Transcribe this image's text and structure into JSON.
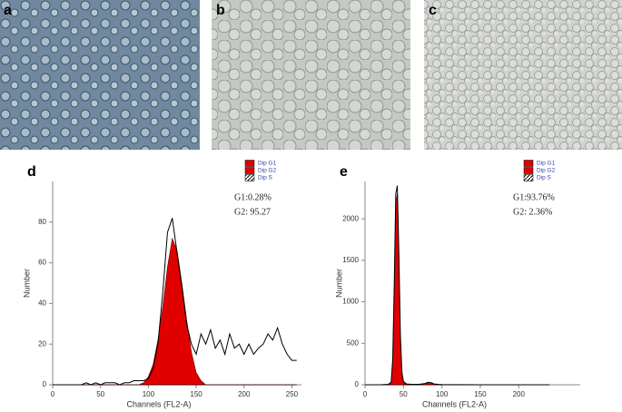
{
  "image_panels": [
    {
      "label": "a"
    },
    {
      "label": "b"
    },
    {
      "label": "c"
    }
  ],
  "chart_data": [
    {
      "type": "line",
      "panel": "d",
      "xlabel": "Channels (FL2-A)",
      "ylabel": "Number",
      "annotations": [
        "G1:0.28%",
        "G2: 95.27"
      ],
      "xlim": [
        0,
        260
      ],
      "xticks": [
        0,
        50,
        100,
        150,
        200,
        250
      ],
      "ylim": [
        0,
        100
      ],
      "yticks": [
        0,
        20,
        40,
        60,
        80
      ],
      "x": [
        0,
        5,
        10,
        15,
        20,
        25,
        30,
        35,
        40,
        45,
        50,
        55,
        60,
        65,
        70,
        75,
        80,
        85,
        90,
        95,
        100,
        105,
        110,
        115,
        120,
        125,
        130,
        135,
        140,
        145,
        150,
        155,
        160,
        165,
        170,
        175,
        180,
        185,
        190,
        195,
        200,
        205,
        210,
        215,
        220,
        225,
        230,
        235,
        240,
        245,
        250,
        255
      ],
      "series": [
        {
          "color": "#000000",
          "values": [
            0,
            0,
            0,
            0,
            0,
            0,
            0,
            1,
            0,
            1,
            0,
            1,
            1,
            1,
            0,
            1,
            1,
            2,
            2,
            2,
            3,
            8,
            20,
            45,
            75,
            82,
            65,
            48,
            30,
            20,
            15,
            25,
            20,
            27,
            18,
            22,
            15,
            25,
            18,
            20,
            15,
            20,
            15,
            18,
            20,
            25,
            22,
            28,
            20,
            15,
            12,
            12
          ]
        },
        {
          "name": "Dip G1",
          "color": "#e00000",
          "values": [
            0,
            0,
            0,
            0,
            0,
            0,
            0,
            0,
            0,
            0,
            0,
            0,
            0,
            0,
            0,
            0,
            0,
            0,
            0,
            0,
            0,
            0,
            0,
            0,
            0,
            0,
            0,
            0,
            0,
            0,
            0,
            0,
            0,
            0,
            0,
            0,
            0,
            0,
            0,
            0,
            0,
            0,
            0,
            0,
            0,
            0,
            0,
            0,
            0,
            0,
            0,
            0
          ]
        },
        {
          "name": "Dip G2",
          "color": "#e00000",
          "values": [
            0,
            0,
            0,
            0,
            0,
            0,
            0,
            0,
            0,
            0,
            0,
            0,
            0,
            0,
            0,
            0,
            0,
            0,
            0,
            1,
            4,
            10,
            22,
            38,
            58,
            72,
            66,
            50,
            32,
            16,
            6,
            2,
            0,
            0,
            0,
            0,
            0,
            0,
            0,
            0,
            0,
            0,
            0,
            0,
            0,
            0,
            0,
            0,
            0,
            0,
            0,
            0
          ]
        },
        {
          "name": "Dip S",
          "color": "hatch",
          "values": [
            0,
            0,
            0,
            0,
            0,
            0,
            0,
            0,
            0,
            0,
            0,
            0,
            0,
            0,
            0,
            0,
            0,
            0,
            0,
            0,
            0,
            0,
            0,
            0,
            0,
            0,
            0,
            0,
            0,
            0,
            0,
            0,
            0,
            0,
            0,
            0,
            0,
            0,
            0,
            0,
            0,
            0,
            0,
            0,
            0,
            0,
            0,
            0,
            0,
            0,
            0,
            0
          ]
        }
      ]
    },
    {
      "type": "line",
      "panel": "e",
      "xlabel": "Channels (FL2-A)",
      "ylabel": "Number",
      "annotations": [
        "G1:93.76%",
        "G2: 2.36%"
      ],
      "xlim": [
        0,
        280
      ],
      "xticks": [
        0,
        50,
        100,
        150,
        200
      ],
      "ylim": [
        0,
        2450
      ],
      "yticks": [
        0,
        500,
        1000,
        1500,
        2000
      ],
      "x": [
        0,
        10,
        20,
        30,
        34,
        36,
        38,
        40,
        42,
        44,
        46,
        48,
        50,
        54,
        60,
        70,
        78,
        82,
        86,
        90,
        95,
        100,
        120,
        150,
        200,
        240
      ],
      "series": [
        {
          "color": "#000000",
          "values": [
            0,
            0,
            0,
            5,
            30,
            300,
            1200,
            2300,
            2400,
            1600,
            600,
            150,
            40,
            10,
            5,
            5,
            15,
            30,
            25,
            10,
            5,
            3,
            2,
            0,
            0,
            0
          ]
        },
        {
          "name": "Dip G1",
          "color": "#e00000",
          "values": [
            0,
            0,
            0,
            3,
            28,
            280,
            1150,
            2200,
            2300,
            1500,
            560,
            130,
            30,
            5,
            0,
            0,
            0,
            0,
            0,
            0,
            0,
            0,
            0,
            0,
            0,
            0
          ]
        },
        {
          "name": "Dip G2",
          "color": "#e00000",
          "values": [
            0,
            0,
            0,
            0,
            0,
            0,
            0,
            0,
            0,
            0,
            0,
            0,
            0,
            0,
            0,
            0,
            12,
            28,
            22,
            8,
            0,
            0,
            0,
            0,
            0,
            0
          ]
        },
        {
          "name": "Dip S",
          "color": "hatch",
          "values": [
            0,
            0,
            0,
            0,
            0,
            0,
            0,
            0,
            0,
            0,
            0,
            0,
            0,
            0,
            0,
            0,
            0,
            0,
            0,
            0,
            0,
            0,
            0,
            0,
            0,
            0
          ]
        }
      ]
    }
  ]
}
